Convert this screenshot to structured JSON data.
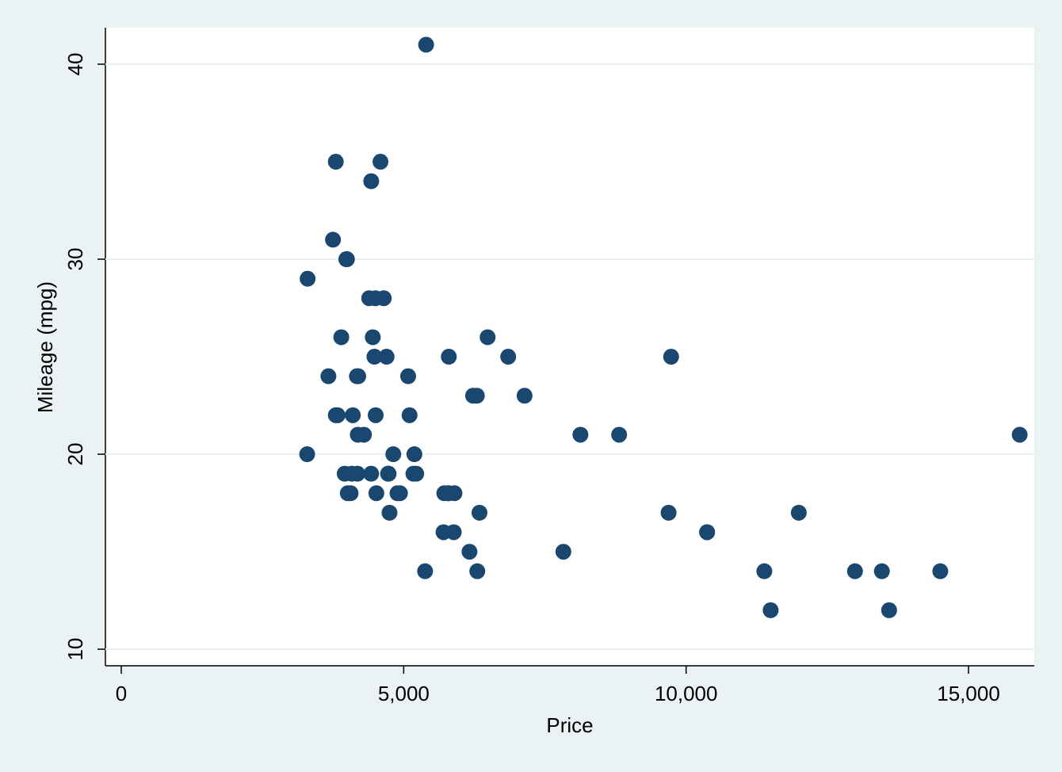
{
  "chart_data": {
    "type": "scatter",
    "x_label": "Price",
    "y_label": "Mileage (mpg)",
    "xlim": [
      -281,
      16164
    ],
    "ylim": [
      9.15,
      41.87
    ],
    "xticks": [
      0,
      {
        "value": 5000,
        "label": "5,000"
      },
      {
        "value": 10000,
        "label": "10,000"
      },
      {
        "value": 15000,
        "label": "15,000"
      }
    ],
    "yticks": [
      10,
      20,
      30,
      40
    ],
    "grid": true,
    "series": [
      {
        "color": "#1a476f",
        "x": [
          4099,
          4749,
          3799,
          4816,
          7827,
          5788,
          4453,
          5189,
          10372,
          4082,
          11385,
          14500,
          15906,
          3299,
          5705,
          4504,
          5104,
          3667,
          3955,
          3984,
          4010,
          5886,
          6342,
          4389,
          4187,
          11497,
          13594,
          13466,
          3829,
          5379,
          6165,
          4516,
          6303,
          3291,
          8814,
          5172,
          4733,
          4890,
          4181,
          4195,
          10371,
          4647,
          4425,
          4482,
          6486,
          4060,
          5798,
          4934,
          5222,
          4723,
          4424,
          4172,
          9690,
          6295,
          9735,
          6229,
          4589,
          5079,
          8129,
          4296,
          5799,
          4499,
          3995,
          12990,
          3895,
          3798,
          5899,
          3748,
          5719,
          7140,
          5397,
          4697,
          6850,
          11995
        ],
        "values": [
          22,
          17,
          22,
          20,
          15,
          18,
          26,
          20,
          16,
          19,
          14,
          14,
          21,
          29,
          16,
          22,
          22,
          24,
          19,
          30,
          18,
          16,
          17,
          28,
          21,
          12,
          12,
          14,
          22,
          14,
          15,
          18,
          14,
          20,
          21,
          19,
          19,
          18,
          19,
          24,
          16,
          28,
          34,
          25,
          26,
          18,
          18,
          18,
          19,
          19,
          19,
          24,
          17,
          23,
          25,
          23,
          35,
          24,
          21,
          21,
          25,
          28,
          30,
          14,
          26,
          35,
          18,
          31,
          18,
          23,
          41,
          25,
          25,
          17
        ]
      }
    ]
  }
}
